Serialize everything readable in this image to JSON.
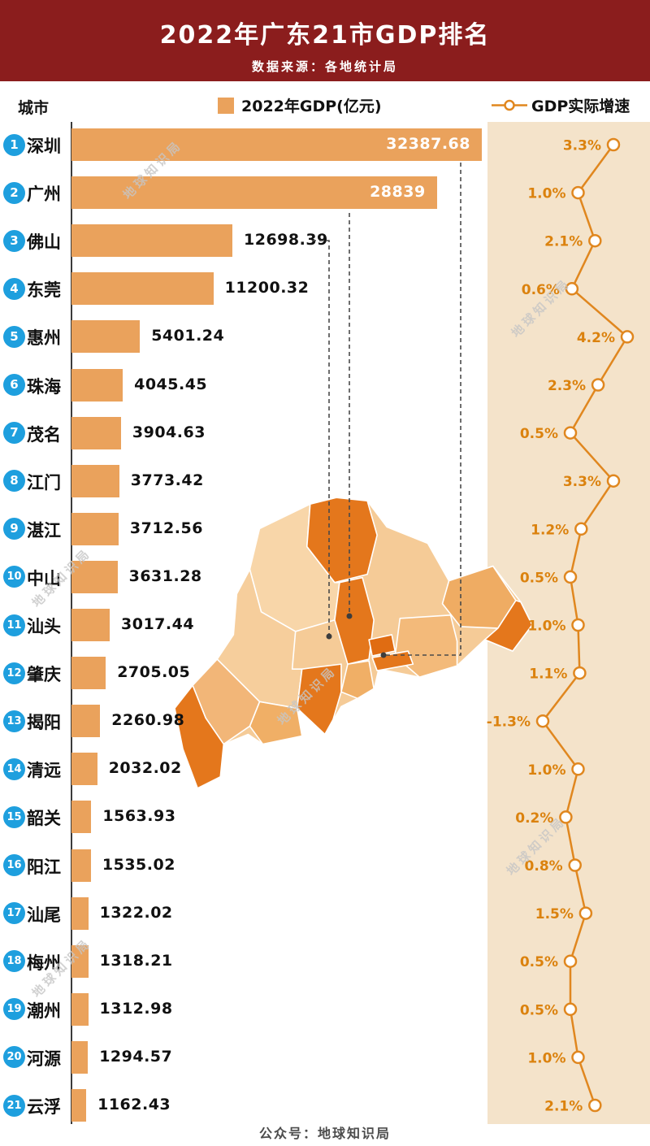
{
  "header": {
    "title": "2022年广东21市GDP排名",
    "subtitle": "数据来源：各地统计局"
  },
  "legend": {
    "city_col": "城市",
    "bar_label": "2022年GDP(亿元)",
    "line_label": "GDP实际增速"
  },
  "footer": "公众号：地球知识局",
  "watermark": "地球知识局",
  "colors": {
    "header_bg": "#8B1D1D",
    "bar": "#EAA25C",
    "rank_circle": "#1E9FDE",
    "panel_bg": "#F4E3CA",
    "line": "#E0871F",
    "growth_label": "#DB820E"
  },
  "chart_data": {
    "type": "bar",
    "orientation": "horizontal",
    "title": "2022年广东21市GDP排名",
    "source": "数据来源：各地统计局",
    "legend_position": "top",
    "categories": [
      "深圳",
      "广州",
      "佛山",
      "东莞",
      "惠州",
      "珠海",
      "茂名",
      "江门",
      "湛江",
      "中山",
      "汕头",
      "肇庆",
      "揭阳",
      "清远",
      "韶关",
      "阳江",
      "汕尾",
      "梅州",
      "潮州",
      "河源",
      "云浮"
    ],
    "ranks": [
      1,
      2,
      3,
      4,
      5,
      6,
      7,
      8,
      9,
      10,
      11,
      12,
      13,
      14,
      15,
      16,
      17,
      18,
      19,
      20,
      21
    ],
    "xlim": [
      0,
      32387.68
    ],
    "growth_range": [
      -1.3,
      4.2
    ],
    "series": [
      {
        "name": "2022年GDP(亿元)",
        "type": "bar",
        "values": [
          32387.68,
          28839,
          12698.39,
          11200.32,
          5401.24,
          4045.45,
          3904.63,
          3773.42,
          3712.56,
          3631.28,
          3017.44,
          2705.05,
          2260.98,
          2032.02,
          1563.93,
          1535.02,
          1322.02,
          1318.21,
          1312.98,
          1294.57,
          1162.43
        ],
        "labels": [
          "32387.68",
          "28839",
          "12698.39",
          "11200.32",
          "5401.24",
          "4045.45",
          "3904.63",
          "3773.42",
          "3712.56",
          "3631.28",
          "3017.44",
          "2705.05",
          "2260.98",
          "2032.02",
          "1563.93",
          "1535.02",
          "1322.02",
          "1318.21",
          "1312.98",
          "1294.57",
          "1162.43"
        ]
      },
      {
        "name": "GDP实际增速",
        "type": "line",
        "unit": "%",
        "values": [
          3.3,
          1.0,
          2.1,
          0.6,
          4.2,
          2.3,
          0.5,
          3.3,
          1.2,
          0.5,
          1.0,
          1.1,
          -1.3,
          1.0,
          0.2,
          0.8,
          1.5,
          0.5,
          0.5,
          1.0,
          2.1
        ],
        "labels": [
          "3.3%",
          "1.0%",
          "2.1%",
          "0.6%",
          "4.2%",
          "2.3%",
          "0.5%",
          "3.3%",
          "1.2%",
          "0.5%",
          "1.0%",
          "1.1%",
          "-1.3%",
          "1.0%",
          "0.2%",
          "0.8%",
          "1.5%",
          "0.5%",
          "0.5%",
          "1.0%",
          "2.1%"
        ]
      }
    ]
  }
}
